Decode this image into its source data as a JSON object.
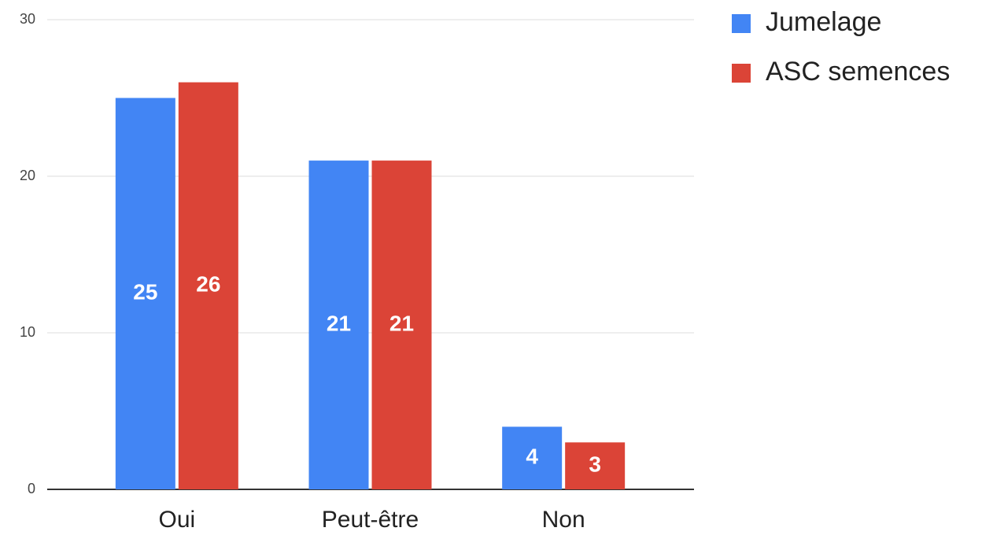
{
  "chart_data": {
    "type": "bar",
    "categories": [
      "Oui",
      "Peut-être",
      "Non"
    ],
    "series": [
      {
        "name": "Jumelage",
        "color": "#4285f4",
        "values": [
          25,
          21,
          4
        ]
      },
      {
        "name": "ASC semences",
        "color": "#db4437",
        "values": [
          26,
          21,
          3
        ]
      }
    ],
    "ylim": [
      0,
      30
    ],
    "yticks": [
      0,
      10,
      20,
      30
    ],
    "grid": true,
    "legend": "right",
    "data_labels": true
  }
}
